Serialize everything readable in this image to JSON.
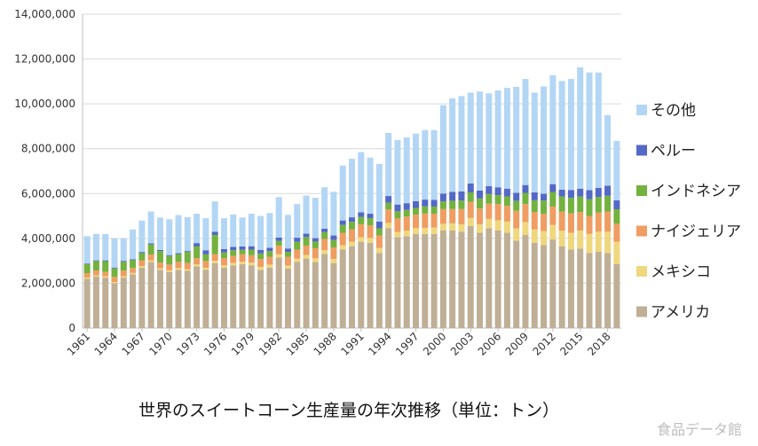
{
  "chart_data": {
    "type": "bar",
    "stacked": true,
    "title": "世界のスイートコーン生産量の年次推移（単位：トン）",
    "xlabel": "",
    "ylabel": "",
    "ylim": [
      0,
      14000000
    ],
    "ytick_labels": [
      "0",
      "2,000,000",
      "4,000,000",
      "6,000,000",
      "8,000,000",
      "10,000,000",
      "12,000,000",
      "14,000,000"
    ],
    "xtick_labels": [
      "1961",
      "1964",
      "1967",
      "1970",
      "1973",
      "1976",
      "1979",
      "1982",
      "1985",
      "1988",
      "1991",
      "1994",
      "1997",
      "2000",
      "2003",
      "2006",
      "2009",
      "2012",
      "2015",
      "2018"
    ],
    "grid": true,
    "legend_position": "right",
    "categories": [
      "1961",
      "1962",
      "1963",
      "1964",
      "1965",
      "1966",
      "1967",
      "1968",
      "1969",
      "1970",
      "1971",
      "1972",
      "1973",
      "1974",
      "1975",
      "1976",
      "1977",
      "1978",
      "1979",
      "1980",
      "1981",
      "1982",
      "1983",
      "1984",
      "1985",
      "1986",
      "1987",
      "1988",
      "1989",
      "1990",
      "1991",
      "1992",
      "1993",
      "1994",
      "1995",
      "1996",
      "1997",
      "1998",
      "1999",
      "2000",
      "2001",
      "2002",
      "2003",
      "2004",
      "2005",
      "2006",
      "2007",
      "2008",
      "2009",
      "2010",
      "2011",
      "2012",
      "2013",
      "2014",
      "2015",
      "2016",
      "2017",
      "2018",
      "2019"
    ],
    "series": [
      {
        "name": "アメリカ",
        "color": "#bfaf96",
        "values": [
          2200000,
          2300000,
          2250000,
          2000000,
          2250000,
          2400000,
          2700000,
          2950000,
          2600000,
          2500000,
          2600000,
          2550000,
          2750000,
          2600000,
          2900000,
          2700000,
          2800000,
          2850000,
          2800000,
          2600000,
          2700000,
          3150000,
          2650000,
          2950000,
          3100000,
          2950000,
          3300000,
          2900000,
          3500000,
          3650000,
          3850000,
          3800000,
          3350000,
          4450000,
          4050000,
          4100000,
          4200000,
          4200000,
          4200000,
          4350000,
          4350000,
          4300000,
          4550000,
          4250000,
          4450000,
          4350000,
          4250000,
          3900000,
          4150000,
          3800000,
          3700000,
          3950000,
          3650000,
          3500000,
          3550000,
          3350000,
          3400000,
          3350000,
          2850000
        ]
      },
      {
        "name": "メキシコ",
        "color": "#efd77e",
        "values": [
          50000,
          50000,
          55000,
          55000,
          60000,
          60000,
          65000,
          70000,
          70000,
          75000,
          80000,
          80000,
          90000,
          90000,
          100000,
          100000,
          110000,
          110000,
          120000,
          130000,
          130000,
          140000,
          140000,
          150000,
          160000,
          160000,
          180000,
          180000,
          190000,
          200000,
          200000,
          220000,
          220000,
          240000,
          240000,
          250000,
          260000,
          270000,
          280000,
          300000,
          320000,
          330000,
          360000,
          380000,
          420000,
          460000,
          500000,
          550000,
          580000,
          600000,
          630000,
          650000,
          700000,
          750000,
          800000,
          850000,
          900000,
          950000,
          1000000
        ]
      },
      {
        "name": "ナイジェリア",
        "color": "#ef9d62",
        "values": [
          200000,
          220000,
          200000,
          230000,
          250000,
          220000,
          260000,
          260000,
          250000,
          260000,
          270000,
          280000,
          280000,
          300000,
          300000,
          320000,
          310000,
          330000,
          330000,
          350000,
          350000,
          380000,
          390000,
          400000,
          420000,
          450000,
          500000,
          520000,
          560000,
          560000,
          580000,
          560000,
          560000,
          600000,
          600000,
          620000,
          600000,
          640000,
          620000,
          660000,
          640000,
          680000,
          720000,
          700000,
          680000,
          720000,
          700000,
          780000,
          800000,
          780000,
          760000,
          820000,
          840000,
          860000,
          820000,
          800000,
          850000,
          900000,
          800000
        ]
      },
      {
        "name": "インドネシア",
        "color": "#73b23e",
        "values": [
          400000,
          420000,
          480000,
          380000,
          400000,
          350000,
          320000,
          450000,
          520000,
          380000,
          350000,
          500000,
          520000,
          300000,
          850000,
          250000,
          250000,
          200000,
          250000,
          250000,
          250000,
          220000,
          220000,
          350000,
          380000,
          300000,
          300000,
          330000,
          350000,
          330000,
          330000,
          320000,
          320000,
          300000,
          320000,
          300000,
          300000,
          320000,
          320000,
          340000,
          370000,
          380000,
          420000,
          450000,
          430000,
          400000,
          420000,
          450000,
          500000,
          520000,
          600000,
          650000,
          680000,
          700000,
          700000,
          750000,
          700000,
          700000,
          650000
        ]
      },
      {
        "name": "ペルー",
        "color": "#5468c6",
        "values": [
          30000,
          30000,
          35000,
          35000,
          40000,
          40000,
          50000,
          50000,
          40000,
          40000,
          40000,
          40000,
          150000,
          180000,
          150000,
          150000,
          150000,
          150000,
          150000,
          150000,
          150000,
          150000,
          150000,
          180000,
          150000,
          150000,
          150000,
          200000,
          200000,
          200000,
          200000,
          200000,
          300000,
          300000,
          300000,
          300000,
          300000,
          300000,
          300000,
          350000,
          400000,
          400000,
          400000,
          350000,
          350000,
          350000,
          350000,
          350000,
          350000,
          350000,
          300000,
          350000,
          300000,
          350000,
          350000,
          400000,
          400000,
          450000,
          400000
        ]
      },
      {
        "name": "その他",
        "color": "#b3d6f5",
        "values": [
          1220000,
          1180000,
          1180000,
          1300000,
          1000000,
          1330000,
          1400000,
          1420000,
          1450000,
          1600000,
          1700000,
          1500000,
          1310000,
          1430000,
          1350000,
          1380000,
          1450000,
          1290000,
          1450000,
          1520000,
          1550000,
          1800000,
          1500000,
          1500000,
          1700000,
          1800000,
          1850000,
          1950000,
          2450000,
          2610000,
          2690000,
          2500000,
          2570000,
          2810000,
          2880000,
          2930000,
          3010000,
          3100000,
          3110000,
          3940000,
          4170000,
          4260000,
          4050000,
          4420000,
          4140000,
          4320000,
          4490000,
          4730000,
          4730000,
          4450000,
          4790000,
          4860000,
          4850000,
          4950000,
          5410000,
          5250000,
          5150000,
          3150000,
          2650000
        ]
      }
    ]
  },
  "watermark": "食品データ館"
}
